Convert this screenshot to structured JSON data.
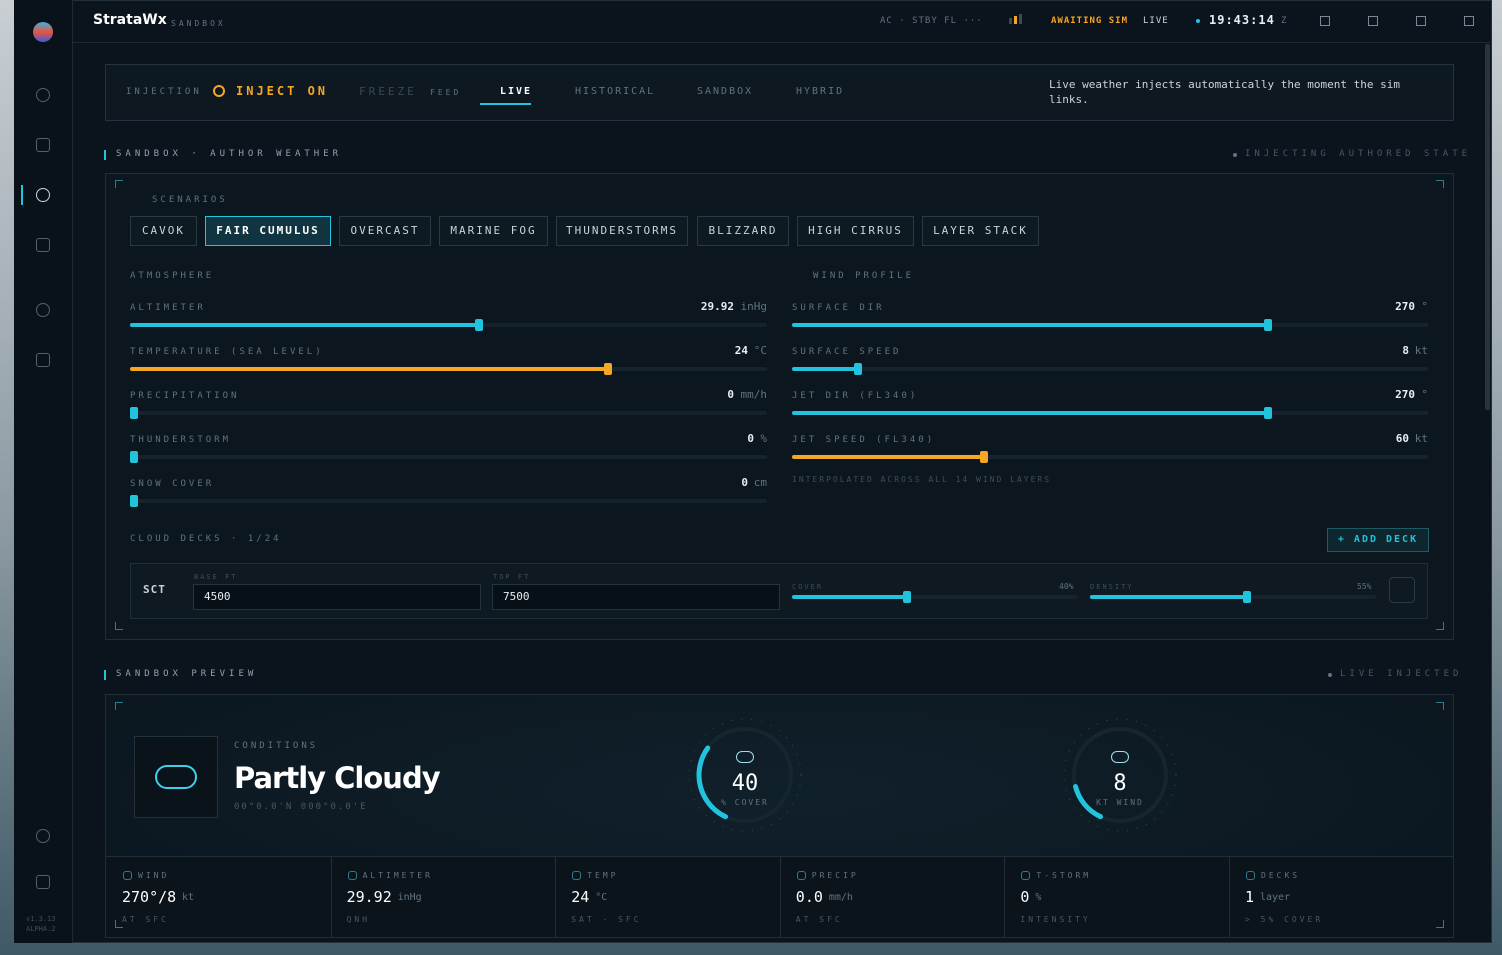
{
  "titlebar": {
    "app": "StrataWx",
    "mode": "SANDBOX",
    "sim": "AC · STBY FL ···",
    "awaiting": "AWAITING SIM",
    "live": "LIVE",
    "clock": "19:43:14",
    "zone": "Z"
  },
  "toolbar": {
    "injection": "INJECTION",
    "inject": "INJECT ON",
    "freeze": "FREEZE",
    "feed": "FEED",
    "tabs": [
      "LIVE",
      "HISTORICAL",
      "SANDBOX",
      "HYBRID"
    ],
    "note": "Live weather injects automatically the moment the sim links."
  },
  "author": {
    "heading": "SANDBOX · AUTHOR WEATHER",
    "status": "INJECTING AUTHORED STATE",
    "scenarios_label": "SCENARIOS",
    "scenarios": [
      "CAVOK",
      "FAIR CUMULUS",
      "OVERCAST",
      "MARINE FOG",
      "THUNDERSTORMS",
      "BLIZZARD",
      "HIGH CIRRUS",
      "LAYER STACK"
    ],
    "atmosphere": {
      "label": "ATMOSPHERE",
      "rows": [
        {
          "label": "ALTIMETER",
          "value": "29.92",
          "unit": "inHg"
        },
        {
          "label": "TEMPERATURE (SEA LEVEL)",
          "value": "24",
          "unit": "°C"
        },
        {
          "label": "PRECIPITATION",
          "value": "0",
          "unit": "mm/h"
        },
        {
          "label": "THUNDERSTORM",
          "value": "0",
          "unit": "%"
        },
        {
          "label": "SNOW COVER",
          "value": "0",
          "unit": "cm"
        }
      ]
    },
    "wind": {
      "label": "WIND PROFILE",
      "rows": [
        {
          "label": "SURFACE DIR",
          "value": "270",
          "unit": "°"
        },
        {
          "label": "SURFACE SPEED",
          "value": "8",
          "unit": "kt"
        },
        {
          "label": "JET DIR (FL340)",
          "value": "270",
          "unit": "°"
        },
        {
          "label": "JET SPEED (FL340)",
          "value": "60",
          "unit": "kt"
        }
      ],
      "note": "INTERPOLATED ACROSS ALL 14 WIND LAYERS"
    },
    "clouds": {
      "label": "CLOUD DECKS · 1/24",
      "add": "+ ADD DECK",
      "deck": {
        "type": "SCT",
        "base_label": "BASE FT",
        "base": "4500",
        "top_label": "TOP FT",
        "top": "7500",
        "cover_label": "COVER",
        "cover": "40%",
        "density_label": "DENSITY",
        "density": "55%"
      }
    }
  },
  "preview": {
    "heading": "SANDBOX PREVIEW",
    "status": "LIVE INJECTED",
    "conditions_label": "CONDITIONS",
    "conditions": "Partly Cloudy",
    "coords": "00°0.0'N 000°0.0'E",
    "cover_gauge": {
      "value": "40",
      "label": "% COVER"
    },
    "wind_gauge": {
      "value": "8",
      "label": "KT WIND"
    },
    "stats": [
      {
        "label": "WIND",
        "value": "270°/8",
        "unit": "kt",
        "sub": "AT SFC"
      },
      {
        "label": "ALTIMETER",
        "value": "29.92",
        "unit": "inHg",
        "sub": "QNH"
      },
      {
        "label": "TEMP",
        "value": "24",
        "unit": "°C",
        "sub": "SAT · SFC"
      },
      {
        "label": "PRECIP",
        "value": "0.0",
        "unit": "mm/h",
        "sub": "AT SFC"
      },
      {
        "label": "T-STORM",
        "value": "0",
        "unit": "%",
        "sub": "INTENSITY"
      },
      {
        "label": "DECKS",
        "value": "1",
        "unit": "layer",
        "sub": "> 5% COVER"
      }
    ]
  },
  "sidebar": {
    "version": "v1.3.13",
    "build": "ALPHA.2"
  }
}
